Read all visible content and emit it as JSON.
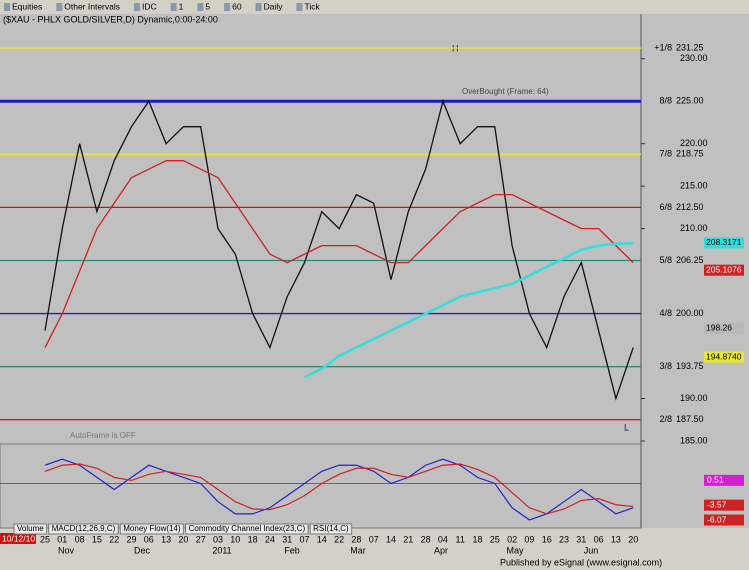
{
  "toolbar": {
    "items": [
      "Equities",
      "Other Intervals",
      "IDC",
      "1",
      "5",
      "60",
      "Daily",
      "Tick"
    ]
  },
  "chart_data": {
    "type": "line",
    "title": "($XAU - PHLX GOLD/SILVER,D) Dynamic,0:00-24:00",
    "x": [
      "25",
      "01",
      "08",
      "15",
      "22",
      "29",
      "06",
      "13",
      "20",
      "27",
      "03",
      "10",
      "18",
      "24",
      "31",
      "07",
      "14",
      "22",
      "28",
      "07",
      "14",
      "21",
      "28",
      "04",
      "11",
      "18",
      "25",
      "02",
      "09",
      "16",
      "23",
      "31",
      "06",
      "13",
      "20"
    ],
    "months": [
      "Nov",
      "Dec",
      "2011",
      "Feb",
      "Mar",
      "Apr",
      "May",
      "Jun"
    ],
    "start_date": "10/12/10",
    "series": [
      {
        "name": "$XAU",
        "color": "#111111",
        "values": [
          198,
          210,
          220,
          212,
          218,
          222,
          225,
          220,
          222,
          222,
          210,
          207,
          200,
          196,
          202,
          206,
          212,
          210,
          214,
          213,
          204,
          212,
          217,
          225,
          220,
          222,
          222,
          208,
          200,
          196,
          202,
          206,
          198,
          190,
          196
        ]
      },
      {
        "name": "MA",
        "color": "#cc2222",
        "values": [
          196,
          200,
          205,
          210,
          213,
          216,
          217,
          218,
          218,
          217,
          216,
          213,
          210,
          207,
          206,
          207,
          208,
          208,
          208,
          207,
          206,
          206,
          208,
          210,
          212,
          213,
          214,
          214,
          213,
          212,
          211,
          210,
          210,
          208,
          206
        ]
      },
      {
        "name": "MA2",
        "color": "#33dddd",
        "values": [
          null,
          null,
          null,
          null,
          null,
          null,
          null,
          null,
          null,
          null,
          null,
          null,
          null,
          null,
          null,
          192.5,
          193.5,
          195,
          196,
          197,
          198,
          199,
          200,
          201,
          202,
          202.5,
          203,
          203.5,
          204.5,
          205.5,
          206.5,
          207.5,
          208,
          208.2,
          208.3
        ]
      }
    ],
    "ylim": [
      185,
      235.5
    ],
    "yticks": [
      {
        "value": 230,
        "label": "230.00"
      },
      {
        "value": 220,
        "label": "220.00"
      },
      {
        "value": 215,
        "label": "215.00"
      },
      {
        "value": 210,
        "label": "210.00"
      },
      {
        "value": 190,
        "label": "190.00"
      },
      {
        "value": 185,
        "label": "185.00"
      }
    ],
    "levels": [
      {
        "name": "+1/8",
        "value": 231.25,
        "color": "#e8e830"
      },
      {
        "name": "8/8",
        "value": 225,
        "value_label": "225.00",
        "color": "#1a1acc"
      },
      {
        "name": "7/8",
        "value": 218.75,
        "color": "#e8e830"
      },
      {
        "name": "6/8",
        "value": 212.5,
        "value_label": "212.50",
        "color": "#cc1111"
      },
      {
        "name": "5/8",
        "value": 206.25,
        "color": "#2a8a7a"
      },
      {
        "name": "4/8",
        "value": 200,
        "value_label": "200.00",
        "color": "#2020c0"
      },
      {
        "name": "3/8",
        "value": 193.75,
        "color": "#3a8a6a"
      },
      {
        "name": "2/8",
        "value": 187.5,
        "value_label": "187.50",
        "color": "#cc1111"
      }
    ],
    "price_markers": [
      {
        "value": 208.3171,
        "color": "#33dddd"
      },
      {
        "value": 205.1076,
        "color": "#cc2222"
      },
      {
        "value": 198.26,
        "color": "#b8b8b8"
      },
      {
        "value": 194.874,
        "value_label": "194.8740",
        "color": "#e8e830"
      }
    ],
    "annotations": [
      "H",
      "L",
      "AutoFrame is OFF",
      "OverBought (Frame: 64)"
    ],
    "indicator": {
      "tabs": [
        "Volume",
        "MACD(12,26,9,C)",
        "Money Flow(14)",
        "Commodity Channel Index(23,C)",
        "RSI(14,C)"
      ],
      "ylim": [
        -7,
        6
      ],
      "series": [
        {
          "name": "MACD",
          "color": "#2222cc",
          "values": [
            3,
            4,
            3,
            1,
            -1,
            1,
            3,
            2,
            1,
            0,
            -3,
            -5,
            -5,
            -4,
            -2,
            0,
            2,
            3,
            3,
            2,
            0,
            1,
            3,
            4,
            3,
            1,
            0,
            -4,
            -6,
            -5,
            -3,
            -1,
            -3,
            -5,
            -4
          ]
        },
        {
          "name": "Signal",
          "color": "#cc2222",
          "values": [
            2,
            3,
            3.2,
            2.5,
            1,
            0.5,
            1.5,
            2,
            1.5,
            1,
            -1,
            -3,
            -4.2,
            -4.3,
            -3.5,
            -2,
            0,
            1.5,
            2.5,
            2.5,
            1.5,
            1,
            2,
            3,
            3.2,
            2.3,
            1,
            -1.5,
            -4,
            -5,
            -4.2,
            -2.8,
            -2.5,
            -3.5,
            -3.8
          ]
        }
      ],
      "markers": [
        {
          "value": 0.51,
          "color": "#d020d0"
        },
        {
          "value": -3.57,
          "color": "#cc2222"
        },
        {
          "value": -6.07,
          "color": "#cc2222"
        }
      ]
    },
    "footer": "Published by eSignal (www.esignal.com)"
  }
}
